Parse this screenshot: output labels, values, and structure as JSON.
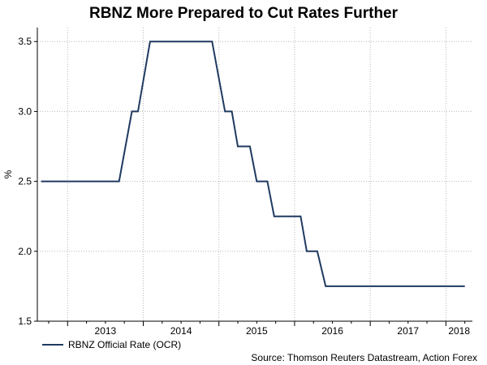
{
  "chart_data": {
    "type": "line",
    "title": "RBNZ More Prepared to Cut Rates Further",
    "xlabel": "",
    "ylabel": "%",
    "ylim": [
      1.5,
      3.6
    ],
    "xlim": [
      2012.6,
      2018.35
    ],
    "yticks": [
      "1.5",
      "2.0",
      "2.5",
      "3.0",
      "3.5"
    ],
    "xticks": [
      "2013",
      "2014",
      "2015",
      "2016",
      "2017",
      "2018"
    ],
    "grid": true,
    "legend_position": "bottom-left",
    "series": [
      {
        "name": "RBNZ Official Rate (OCR)",
        "color": "#1f3a60",
        "x": [
          2012.65,
          2013.68,
          2013.85,
          2013.93,
          2014.09,
          2014.91,
          2015.08,
          2015.17,
          2015.25,
          2015.41,
          2015.5,
          2015.64,
          2015.73,
          2016.08,
          2016.16,
          2016.3,
          2016.41,
          2018.25
        ],
        "y": [
          2.5,
          2.5,
          3.0,
          3.0,
          3.5,
          3.5,
          3.0,
          3.0,
          2.75,
          2.75,
          2.5,
          2.5,
          2.25,
          2.25,
          2.0,
          2.0,
          1.75,
          1.75
        ]
      }
    ],
    "source": "Source: Thomson Reuters Datastream, Action Forex"
  }
}
